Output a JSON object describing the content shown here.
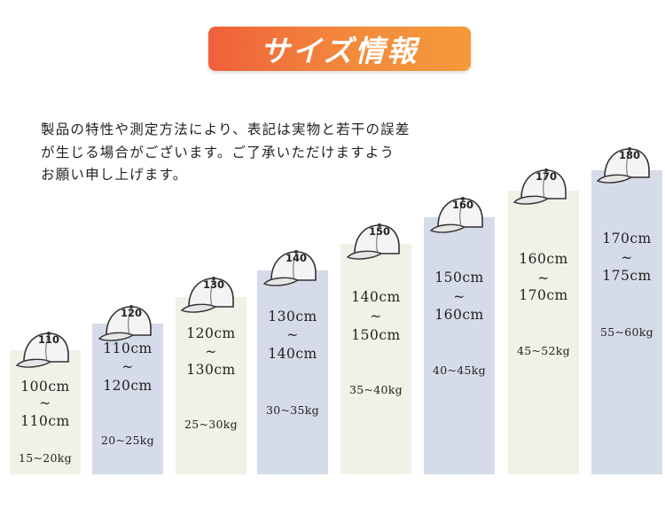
{
  "title": "サイズ情報",
  "note_lines": [
    "製品の特性や測定方法により、表記は実物と若干の誤差",
    "が生じる場合がございます。ご了承いただけますよう",
    "お願い申し上げます。"
  ],
  "colors": {
    "title_gradient_start": "#f0603a",
    "title_gradient_end": "#f59a3a",
    "col_light": "#f1f1e7",
    "col_dark": "#d5dbe8"
  },
  "sizes": [
    {
      "label": "110",
      "h1": "100cm",
      "tilde": "~",
      "h2": "110cm",
      "weight": "15~20kg"
    },
    {
      "label": "120",
      "h1": "110cm",
      "tilde": "~",
      "h2": "120cm",
      "weight": "20~25kg"
    },
    {
      "label": "130",
      "h1": "120cm",
      "tilde": "~",
      "h2": "130cm",
      "weight": "25~30kg"
    },
    {
      "label": "140",
      "h1": "130cm",
      "tilde": "~",
      "h2": "140cm",
      "weight": "30~35kg"
    },
    {
      "label": "150",
      "h1": "140cm",
      "tilde": "~",
      "h2": "150cm",
      "weight": "35~40kg"
    },
    {
      "label": "160",
      "h1": "150cm",
      "tilde": "~",
      "h2": "160cm",
      "weight": "40~45kg"
    },
    {
      "label": "170",
      "h1": "160cm",
      "tilde": "~",
      "h2": "170cm",
      "weight": "45~52kg"
    },
    {
      "label": "180",
      "h1": "170cm",
      "tilde": "~",
      "h2": "175cm",
      "weight": "55~60kg"
    }
  ]
}
